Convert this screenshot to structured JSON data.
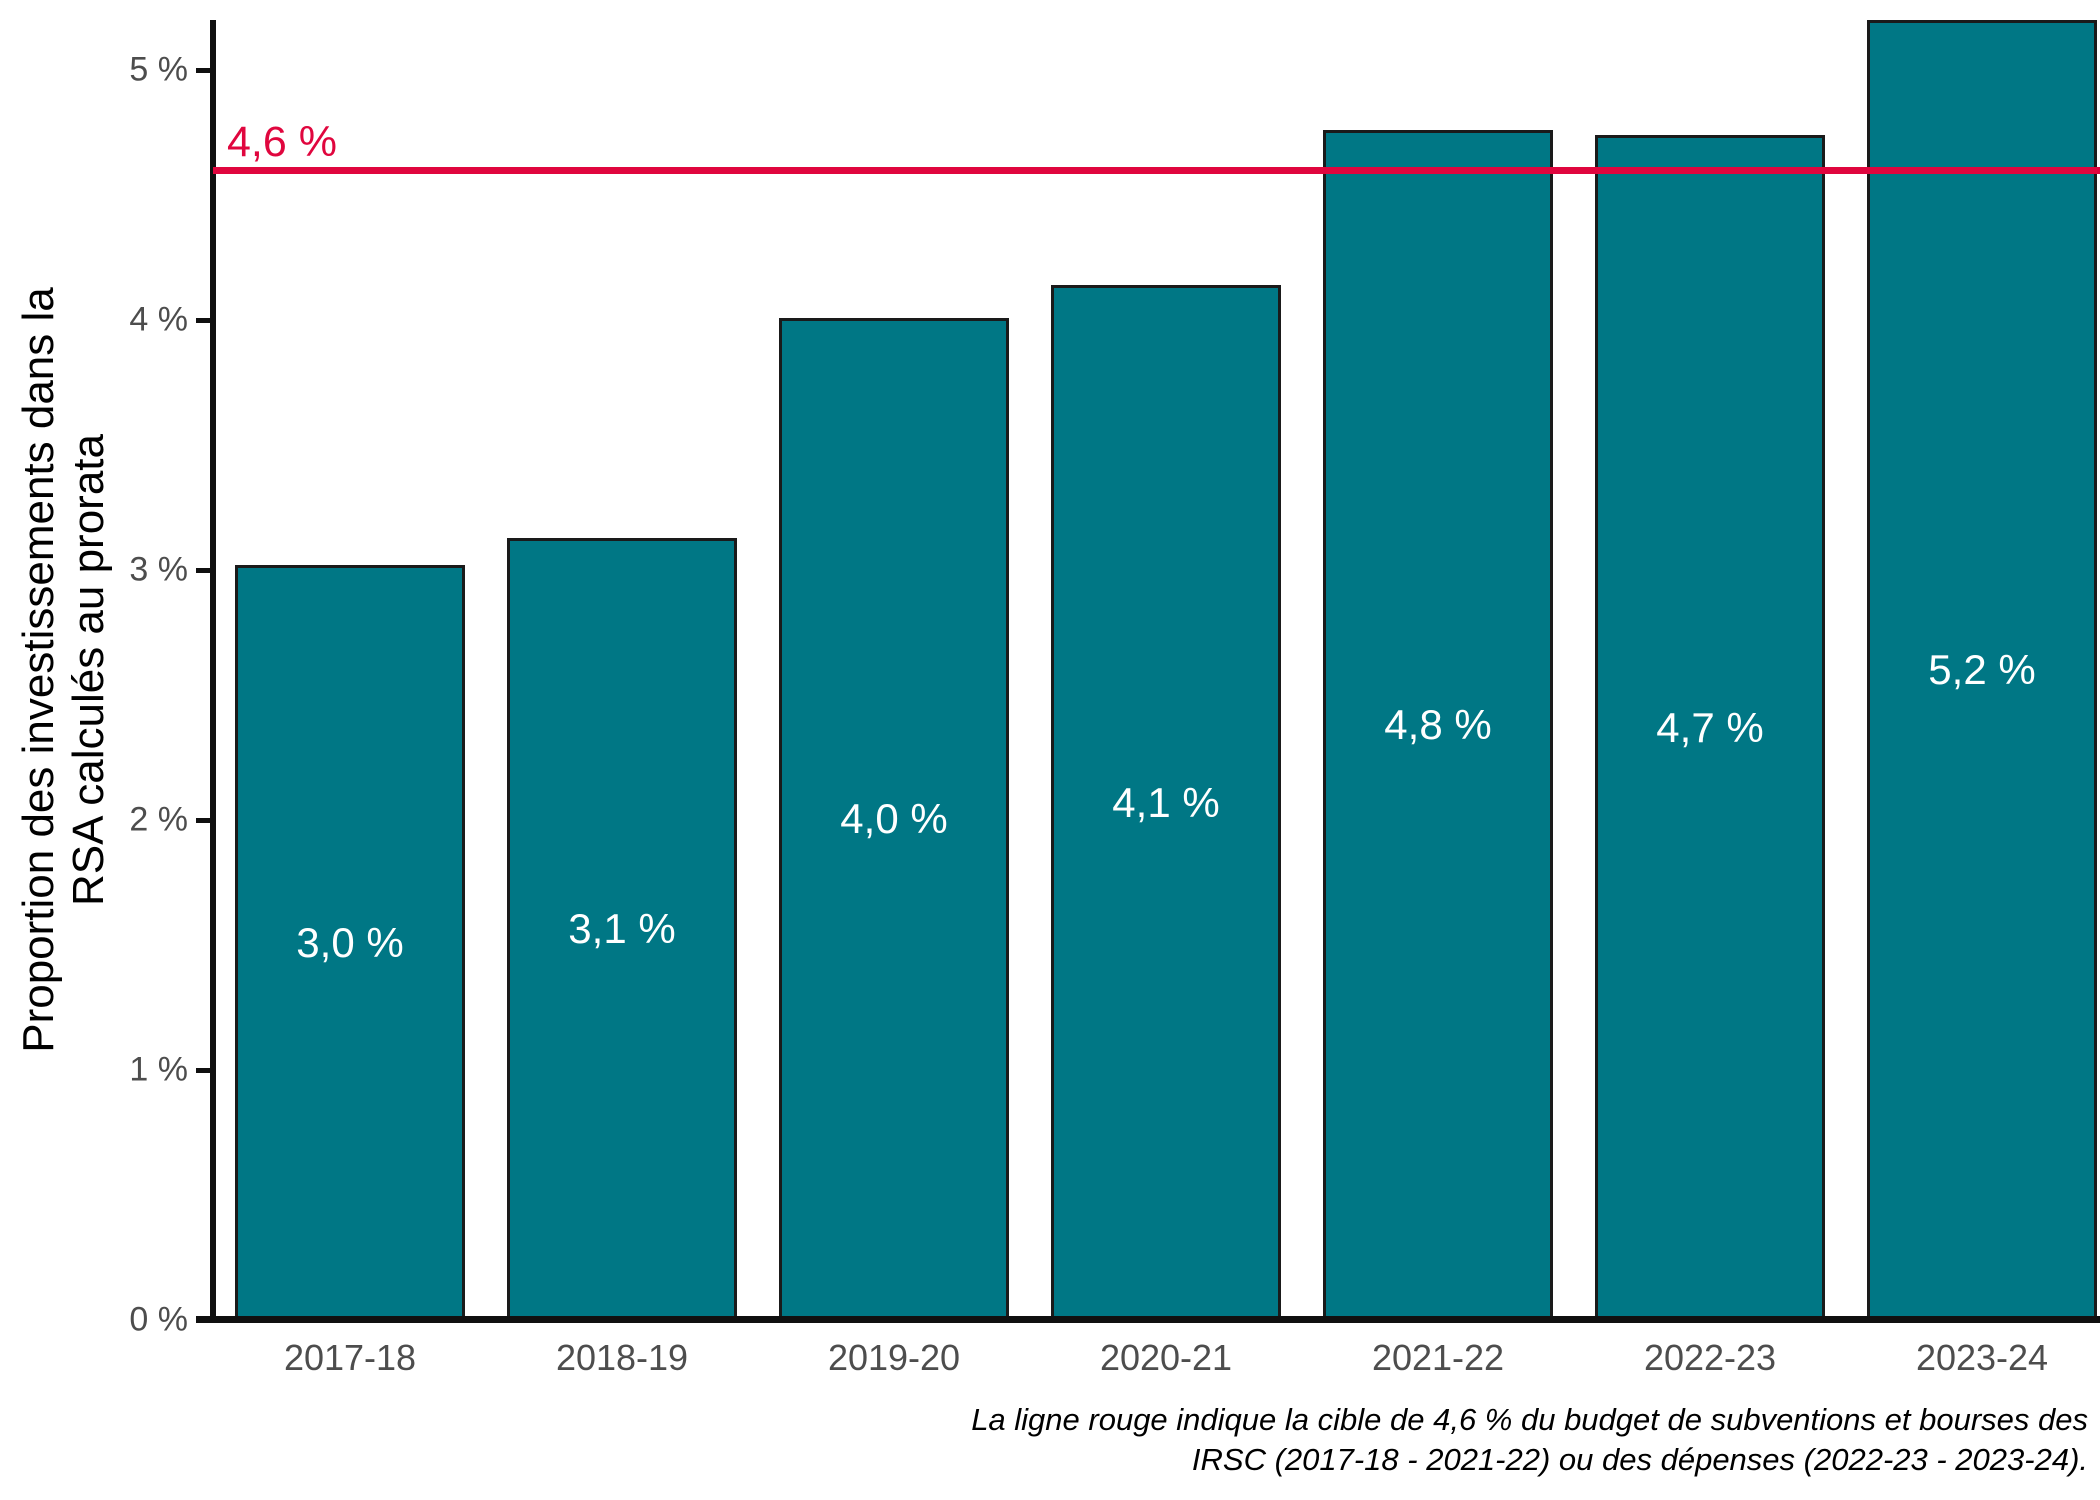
{
  "chart_data": {
    "type": "bar",
    "title": "",
    "categories": [
      "2017-18",
      "2018-19",
      "2019-20",
      "2020-21",
      "2021-22",
      "2022-23",
      "2023-24"
    ],
    "values": [
      3.02,
      3.13,
      4.01,
      4.14,
      4.76,
      4.74,
      5.2
    ],
    "bar_labels": [
      "3,0 %",
      "3,1 %",
      "4,0 %",
      "4,1 %",
      "4,8 %",
      "4,7 %",
      "5,2 %"
    ],
    "ylabel_lines": [
      "Proportion des investissements dans la",
      "RSA calculés au prorata"
    ],
    "xlabel": "",
    "y_ticks": [
      {
        "value": 0,
        "label": "0 %"
      },
      {
        "value": 1,
        "label": "1 %"
      },
      {
        "value": 2,
        "label": "2 %"
      },
      {
        "value": 3,
        "label": "3 %"
      },
      {
        "value": 4,
        "label": "4 %"
      },
      {
        "value": 5,
        "label": "5 %"
      }
    ],
    "ylim": [
      0,
      5.2
    ],
    "grid": false,
    "legend": false,
    "target_line": {
      "value": 4.6,
      "label": "4,6 %"
    },
    "caption_lines": [
      "La ligne rouge indique la cible de 4,6 % du budget de subventions et bourses des",
      "IRSC (2017-18 - 2021-22) ou des dépenses (2022-23 - 2023-24)."
    ],
    "colors": {
      "bar_fill": "#007785",
      "bar_border": "#1A1A1A",
      "target_line": "#E0063E",
      "axis": "#101010",
      "tick_label": "#4D4D4D",
      "bar_label": "#FFFFFF",
      "caption": "#000000"
    }
  }
}
